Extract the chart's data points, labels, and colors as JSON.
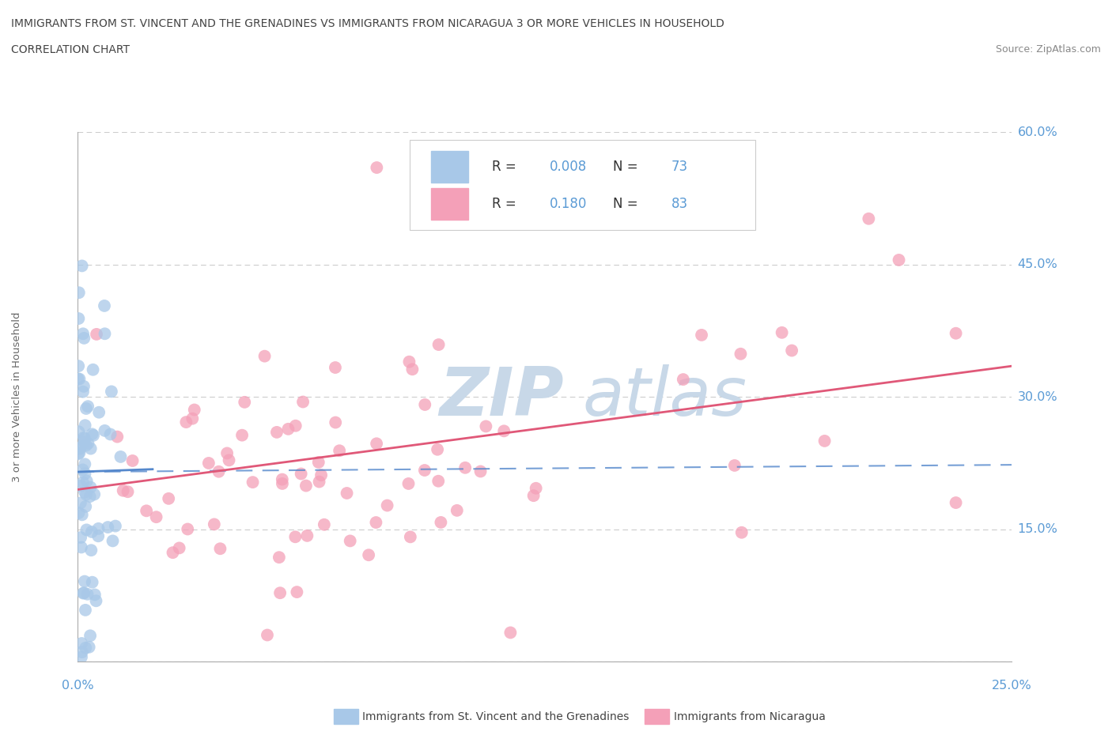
{
  "title_line1": "IMMIGRANTS FROM ST. VINCENT AND THE GRENADINES VS IMMIGRANTS FROM NICARAGUA 3 OR MORE VEHICLES IN HOUSEHOLD",
  "title_line2": "CORRELATION CHART",
  "source": "Source: ZipAtlas.com",
  "ylabel": "3 or more Vehicles in Household",
  "xaxis_label_blue": "Immigrants from St. Vincent and the Grenadines",
  "xaxis_label_pink": "Immigrants from Nicaragua",
  "xlim": [
    0.0,
    0.25
  ],
  "ylim": [
    0.0,
    0.6
  ],
  "xticks": [
    0.0,
    0.05,
    0.1,
    0.15,
    0.2,
    0.25
  ],
  "yticks": [
    0.0,
    0.15,
    0.3,
    0.45,
    0.6
  ],
  "blue_R": 0.008,
  "blue_N": 73,
  "pink_R": 0.18,
  "pink_N": 83,
  "blue_color": "#a8c8e8",
  "pink_color": "#f4a0b8",
  "blue_line_color": "#5588cc",
  "pink_line_color": "#e05878",
  "watermark_color": "#c8d8e8",
  "grid_color": "#cccccc"
}
